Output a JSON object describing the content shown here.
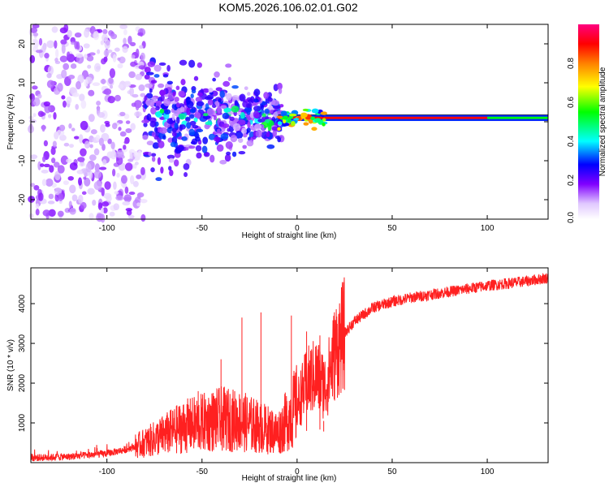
{
  "figure_title": "KOM5.2026.106.02.01.G02",
  "chart_data": [
    {
      "type": "heatmap",
      "title": "KOM5.2026.106.02.01.G02",
      "xlabel": "Height of straight line (km)",
      "ylabel": "Frequency (Hz)",
      "xlim": [
        -140,
        132
      ],
      "ylim": [
        -25,
        25
      ],
      "x_ticks": [
        -100,
        -50,
        0,
        50,
        100
      ],
      "y_ticks": [
        -20,
        -10,
        0,
        10,
        20
      ],
      "x_tick_labels": [
        "-100",
        "-50",
        "0",
        "50",
        "100"
      ],
      "y_tick_labels": [
        "-20",
        "-10",
        "0",
        "10",
        "20"
      ],
      "colorbar": {
        "label": "Normalized spectral amplitude",
        "range": [
          0,
          1
        ],
        "ticks": [
          0.0,
          0.2,
          0.4,
          0.6,
          0.8
        ],
        "tick_labels": [
          "0.0",
          "0.2",
          "0.4",
          "0.6",
          "0.8"
        ],
        "colormap": [
          "#ffffff",
          "#e0c8ff",
          "#8000ff",
          "#0000ff",
          "#00ffff",
          "#00ff00",
          "#ffff00",
          "#ff8000",
          "#ff0000",
          "#ff0080"
        ]
      },
      "description_regions": [
        {
          "x_range": [
            -140,
            -80
          ],
          "freq_spread": 25,
          "amplitude": 0.15
        },
        {
          "x_range": [
            -80,
            -10
          ],
          "freq_spread": 7,
          "amplitude": 0.3
        },
        {
          "x_range": [
            -10,
            100
          ],
          "freq_center": 1,
          "amplitude": 0.85
        },
        {
          "x_range": [
            100,
            132
          ],
          "freq_center": 1,
          "amplitude": 0.4
        }
      ]
    },
    {
      "type": "line",
      "xlabel": "Height of straight line (km)",
      "ylabel": "SNR (10 * v/v)",
      "xlim": [
        -140,
        132
      ],
      "ylim": [
        0,
        4900
      ],
      "x_ticks": [
        -100,
        -50,
        0,
        50,
        100
      ],
      "y_ticks": [
        1000,
        2000,
        3000,
        4000
      ],
      "x_tick_labels": [
        "-100",
        "-50",
        "0",
        "50",
        "100"
      ],
      "y_tick_labels": [
        "1000",
        "2000",
        "3000",
        "4000"
      ],
      "series": [
        {
          "name": "SNR",
          "color": "#ff2020",
          "trend_x": [
            -140,
            -120,
            -100,
            -90,
            -80,
            -70,
            -60,
            -50,
            -40,
            -30,
            -20,
            -10,
            0,
            5,
            10,
            15,
            20,
            25,
            30,
            40,
            50,
            60,
            80,
            100,
            120,
            132
          ],
          "trend_y": [
            120,
            150,
            230,
            330,
            500,
            700,
            900,
            1000,
            1100,
            1050,
            900,
            750,
            1450,
            2000,
            2200,
            1900,
            2800,
            3250,
            3550,
            3900,
            4050,
            4150,
            4300,
            4450,
            4560,
            4650
          ],
          "spikes": [
            {
              "x": -52,
              "y": 1800
            },
            {
              "x": -40,
              "y": 2600
            },
            {
              "x": -29,
              "y": 3650
            },
            {
              "x": -19,
              "y": 3780
            },
            {
              "x": -3,
              "y": 3700
            },
            {
              "x": 5,
              "y": 3300
            },
            {
              "x": 12,
              "y": 3200
            },
            {
              "x": 14,
              "y": 1050
            }
          ]
        }
      ]
    }
  ]
}
